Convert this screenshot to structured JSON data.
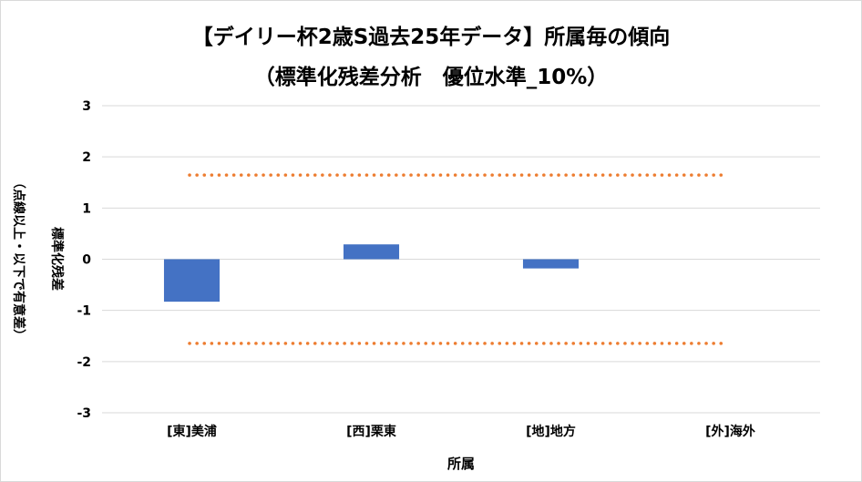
{
  "chart_data": {
    "type": "bar",
    "title": [
      "【デイリー杯2歳S過去25年データ】所属毎の傾向",
      "（標準化残差分析　優位水準_10%）"
    ],
    "xlabel": "所属",
    "ylabel": [
      "標準化残差",
      "（点線以上・以下で有意差）"
    ],
    "categories": [
      "[東]美浦",
      "[西]栗東",
      "[地]地方",
      "[外]海外"
    ],
    "series": [
      {
        "values": [
          -0.83,
          0.29,
          -0.18,
          0
        ]
      }
    ],
    "reference_lines": [
      1.645,
      -1.645
    ],
    "ylim": [
      -3,
      3
    ],
    "yticks": [
      3,
      2,
      1,
      0,
      -1,
      -2,
      -3
    ],
    "grid": true,
    "legend": "none",
    "colors": {
      "bar": "#4472c4",
      "reference": "#ed7d31",
      "grid": "#d9d9d9"
    }
  }
}
